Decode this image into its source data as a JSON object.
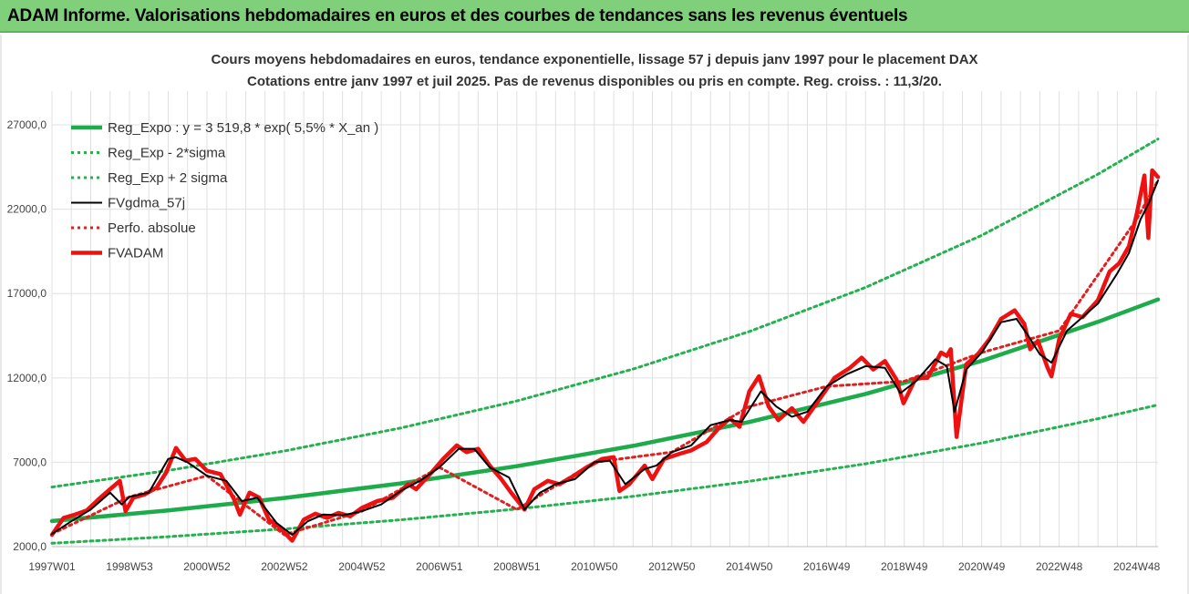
{
  "header": {
    "title": "ADAM Informe. Valorisations hebdomadaires en euros et des courbes de tendances sans les revenus éventuels"
  },
  "colors": {
    "header_bg": "#80cf7a",
    "regression": "#1eab4b",
    "sigma_band": "#26b050",
    "fvgdma": "#000000",
    "perfo": "#e02020",
    "fvadam": "#ee1111",
    "grid": "#e0e0e0"
  },
  "chart_data": {
    "type": "line",
    "title": "Cours moyens hebdomadaires en euros, tendance exponentielle, lissage 57 j depuis janv 1997 pour le placement DAX",
    "subtitle": "Cotations entre janv 1997 et juil 2025. Pas de revenus disponibles ou pris en compte. Reg. croiss. : 11,3/20.",
    "xlabel": "",
    "ylabel": "",
    "x_range": [
      1997.0,
      2025.55
    ],
    "ylim": [
      2000,
      29000
    ],
    "y_ticks": [
      "2000,0",
      "7000,0",
      "12000,0",
      "17000,0",
      "22000,0",
      "27000,0"
    ],
    "y_tick_values": [
      2000,
      7000,
      12000,
      17000,
      22000,
      27000
    ],
    "x_ticks": [
      "1997W01",
      "1998W53",
      "2000W52",
      "2002W52",
      "2004W52",
      "2006W51",
      "2008W51",
      "2010W50",
      "2012W50",
      "2014W50",
      "2016W49",
      "2018W49",
      "2020W49",
      "2022W48",
      "2024W48"
    ],
    "x_tick_values": [
      1997.0,
      1999.0,
      2001.0,
      2003.0,
      2005.0,
      2007.0,
      2009.0,
      2011.0,
      2013.0,
      2015.0,
      2017.0,
      2019.0,
      2021.0,
      2023.0,
      2025.0
    ],
    "grid": "vertical and horizontal",
    "legend_position": "top-left",
    "series": [
      {
        "name": "Reg_Expo : y = 3 519,8 * exp( 5,5% *  X_an )",
        "style": "solid-thick",
        "color": "#1eab4b",
        "x": [
          1997.0,
          2000.0,
          2003.0,
          2006.0,
          2009.0,
          2012.0,
          2015.0,
          2018.0,
          2021.0,
          2024.0,
          2025.55
        ],
        "y": [
          3520,
          4145,
          4881,
          5748,
          6768,
          7970,
          9385,
          11051,
          13013,
          15324,
          16650
        ]
      },
      {
        "name": "Reg_Exp - 2*sigma",
        "style": "dotted",
        "color": "#26b050",
        "x": [
          1997.0,
          2000.0,
          2003.0,
          2006.0,
          2009.0,
          2012.0,
          2015.0,
          2018.0,
          2021.0,
          2024.0,
          2025.55
        ],
        "y": [
          2200,
          2590,
          3050,
          3590,
          4230,
          4980,
          5870,
          6910,
          8140,
          9580,
          10400
        ]
      },
      {
        "name": "Reg_Exp + 2 sigma",
        "style": "dotted",
        "color": "#26b050",
        "x": [
          1997.0,
          2000.0,
          2003.0,
          2006.0,
          2009.0,
          2012.0,
          2015.0,
          2018.0,
          2021.0,
          2024.0,
          2025.55
        ],
        "y": [
          5530,
          6515,
          7670,
          9030,
          10635,
          12525,
          14750,
          17365,
          20450,
          24075,
          26160
        ]
      },
      {
        "name": "FVgdma_57j",
        "style": "solid",
        "color": "#000000",
        "x": [
          1997.0,
          1997.5,
          1998.0,
          1998.5,
          1998.8,
          1999.0,
          1999.5,
          2000.0,
          2000.2,
          2000.5,
          2001.0,
          2001.5,
          2001.9,
          2002.3,
          2002.8,
          2003.2,
          2003.6,
          2004.0,
          2004.5,
          2005.0,
          2005.5,
          2006.0,
          2006.5,
          2007.0,
          2007.5,
          2007.9,
          2008.3,
          2008.8,
          2009.2,
          2009.6,
          2010.0,
          2010.5,
          2011.0,
          2011.4,
          2011.8,
          2012.3,
          2012.6,
          2013.0,
          2013.5,
          2014.0,
          2014.5,
          2014.8,
          2015.3,
          2015.7,
          2016.1,
          2016.5,
          2017.0,
          2017.5,
          2018.0,
          2018.5,
          2018.9,
          2019.3,
          2019.8,
          2020.1,
          2020.3,
          2020.6,
          2021.0,
          2021.5,
          2021.9,
          2022.2,
          2022.5,
          2022.8,
          2023.2,
          2023.6,
          2024.0,
          2024.5,
          2024.8,
          2025.1,
          2025.3,
          2025.55
        ],
        "y": [
          2750,
          3500,
          4200,
          5200,
          4500,
          4950,
          5200,
          7200,
          7300,
          7000,
          6200,
          5900,
          4700,
          4900,
          3400,
          2700,
          3500,
          3900,
          3850,
          4100,
          4500,
          5300,
          5900,
          6700,
          7800,
          7800,
          6700,
          6100,
          4200,
          5200,
          5700,
          6000,
          7000,
          7100,
          5700,
          6600,
          6800,
          7600,
          8000,
          9200,
          9500,
          9400,
          11200,
          10300,
          9700,
          10000,
          11500,
          12200,
          12700,
          12600,
          11100,
          11800,
          13100,
          12700,
          10000,
          12500,
          13500,
          15300,
          15500,
          14500,
          13400,
          12900,
          14800,
          15600,
          16400,
          18200,
          19400,
          21400,
          22300,
          23700
        ]
      },
      {
        "name": "Perfo. absolue",
        "style": "dotted",
        "color": "#e02020",
        "x": [
          1997.0,
          1999.0,
          2001.0,
          2003.0,
          2005.0,
          2007.0,
          2009.0,
          2011.0,
          2013.0,
          2015.0,
          2017.0,
          2019.0,
          2021.0,
          2023.0,
          2025.0,
          2025.55
        ],
        "y": [
          2750,
          4950,
          6200,
          2700,
          4100,
          6700,
          4200,
          7000,
          7600,
          10300,
          11500,
          11800,
          13500,
          14800,
          21400,
          23700
        ]
      },
      {
        "name": "FVADAM",
        "style": "solid-thick",
        "color": "#ee1111",
        "x": [
          1997.0,
          1997.3,
          1997.6,
          1997.9,
          1998.2,
          1998.5,
          1998.75,
          1998.9,
          1999.1,
          1999.4,
          1999.7,
          1999.95,
          2000.2,
          2000.45,
          2000.7,
          2001.0,
          2001.35,
          2001.7,
          2001.85,
          2002.1,
          2002.35,
          2002.6,
          2002.85,
          2003.2,
          2003.5,
          2003.8,
          2004.1,
          2004.4,
          2004.7,
          2005.0,
          2005.4,
          2005.8,
          2006.2,
          2006.4,
          2006.8,
          2007.1,
          2007.45,
          2007.7,
          2008.0,
          2008.3,
          2008.6,
          2008.85,
          2009.2,
          2009.45,
          2009.8,
          2010.1,
          2010.4,
          2010.8,
          2011.2,
          2011.5,
          2011.65,
          2011.9,
          2012.3,
          2012.5,
          2012.8,
          2013.2,
          2013.5,
          2013.9,
          2014.2,
          2014.5,
          2014.75,
          2015.0,
          2015.25,
          2015.5,
          2015.75,
          2016.1,
          2016.4,
          2016.8,
          2017.2,
          2017.6,
          2017.9,
          2018.2,
          2018.5,
          2018.8,
          2018.98,
          2019.3,
          2019.6,
          2019.95,
          2020.1,
          2020.2,
          2020.35,
          2020.6,
          2020.9,
          2021.2,
          2021.5,
          2021.85,
          2022.1,
          2022.25,
          2022.45,
          2022.7,
          2022.8,
          2023.0,
          2023.3,
          2023.6,
          2023.8,
          2024.0,
          2024.3,
          2024.55,
          2024.8,
          2025.0,
          2025.2,
          2025.3,
          2025.4,
          2025.55
        ],
        "y": [
          2700,
          3700,
          3900,
          4150,
          4800,
          5400,
          5900,
          4100,
          4900,
          5100,
          5500,
          6400,
          7850,
          7100,
          7200,
          6500,
          6300,
          4800,
          3900,
          5200,
          4900,
          3600,
          3200,
          2350,
          3600,
          3950,
          3700,
          4000,
          3800,
          4300,
          4700,
          4900,
          5700,
          5400,
          6400,
          7200,
          8000,
          7600,
          7800,
          6800,
          6000,
          5200,
          4200,
          5400,
          5900,
          5700,
          6100,
          6700,
          7200,
          7300,
          5300,
          5700,
          6800,
          6000,
          7200,
          7500,
          7700,
          8200,
          9000,
          9600,
          9100,
          11200,
          12100,
          10300,
          9500,
          10200,
          9400,
          10700,
          12000,
          12600,
          13200,
          12500,
          13000,
          11900,
          10500,
          12000,
          12000,
          13500,
          13300,
          13700,
          8500,
          12800,
          13400,
          14300,
          15500,
          16000,
          15200,
          13700,
          14200,
          12600,
          12100,
          14300,
          15800,
          15600,
          16100,
          16600,
          18300,
          18800,
          19800,
          21700,
          24000,
          20300,
          24300,
          23900
        ]
      }
    ]
  }
}
